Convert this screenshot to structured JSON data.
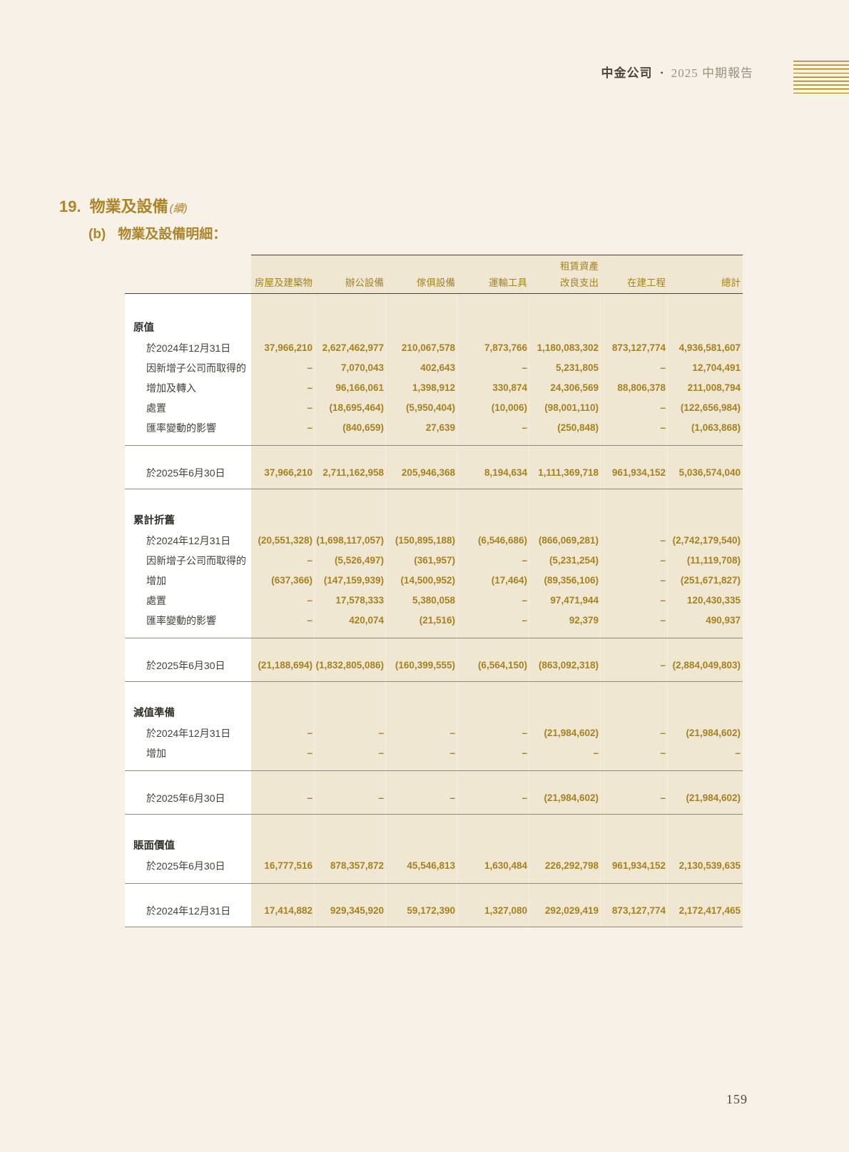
{
  "page_header": {
    "company": "中金公司",
    "separator": "•",
    "report_title": "2025 中期報告"
  },
  "section": {
    "number": "19.",
    "title": "物業及設備",
    "title_suffix": "(續)",
    "sub_label": "(b)",
    "sub_title": "物業及設備明細："
  },
  "table": {
    "group_header": {
      "label": "租賃資產",
      "over_column": 4
    },
    "columns": [
      "房屋及建築物",
      "辦公設備",
      "傢俱設備",
      "運輸工具",
      "改良支出",
      "在建工程",
      "總計"
    ],
    "sections": [
      {
        "title": "原值",
        "rows": [
          {
            "label": "於2024年12月31日",
            "values": [
              "37,966,210",
              "2,627,462,977",
              "210,067,578",
              "7,873,766",
              "1,180,083,302",
              "873,127,774",
              "4,936,581,607"
            ]
          },
          {
            "label": "因新增子公司而取得的",
            "values": [
              "–",
              "7,070,043",
              "402,643",
              "–",
              "5,231,805",
              "–",
              "12,704,491"
            ]
          },
          {
            "label": "增加及轉入",
            "values": [
              "–",
              "96,166,061",
              "1,398,912",
              "330,874",
              "24,306,569",
              "88,806,378",
              "211,008,794"
            ]
          },
          {
            "label": "處置",
            "values": [
              "–",
              "(18,695,464)",
              "(5,950,404)",
              "(10,006)",
              "(98,001,110)",
              "–",
              "(122,656,984)"
            ]
          },
          {
            "label": "匯率變動的影響",
            "values": [
              "–",
              "(840,659)",
              "27,639",
              "–",
              "(250,848)",
              "–",
              "(1,063,868)"
            ]
          }
        ],
        "total": {
          "label": "於2025年6月30日",
          "values": [
            "37,966,210",
            "2,711,162,958",
            "205,946,368",
            "8,194,634",
            "1,111,369,718",
            "961,934,152",
            "5,036,574,040"
          ]
        }
      },
      {
        "title": "累計折舊",
        "rows": [
          {
            "label": "於2024年12月31日",
            "values": [
              "(20,551,328)",
              "(1,698,117,057)",
              "(150,895,188)",
              "(6,546,686)",
              "(866,069,281)",
              "–",
              "(2,742,179,540)"
            ]
          },
          {
            "label": "因新增子公司而取得的",
            "values": [
              "–",
              "(5,526,497)",
              "(361,957)",
              "–",
              "(5,231,254)",
              "–",
              "(11,119,708)"
            ]
          },
          {
            "label": "增加",
            "values": [
              "(637,366)",
              "(147,159,939)",
              "(14,500,952)",
              "(17,464)",
              "(89,356,106)",
              "–",
              "(251,671,827)"
            ]
          },
          {
            "label": "處置",
            "values": [
              "–",
              "17,578,333",
              "5,380,058",
              "–",
              "97,471,944",
              "–",
              "120,430,335"
            ]
          },
          {
            "label": "匯率變動的影響",
            "values": [
              "–",
              "420,074",
              "(21,516)",
              "–",
              "92,379",
              "–",
              "490,937"
            ]
          }
        ],
        "total": {
          "label": "於2025年6月30日",
          "values": [
            "(21,188,694)",
            "(1,832,805,086)",
            "(160,399,555)",
            "(6,564,150)",
            "(863,092,318)",
            "–",
            "(2,884,049,803)"
          ]
        }
      },
      {
        "title": "減值準備",
        "rows": [
          {
            "label": "於2024年12月31日",
            "values": [
              "–",
              "–",
              "–",
              "–",
              "(21,984,602)",
              "–",
              "(21,984,602)"
            ]
          },
          {
            "label": "增加",
            "values": [
              "–",
              "–",
              "–",
              "–",
              "–",
              "–",
              "–"
            ]
          }
        ],
        "total": {
          "label": "於2025年6月30日",
          "values": [
            "–",
            "–",
            "–",
            "–",
            "(21,984,602)",
            "–",
            "(21,984,602)"
          ]
        }
      },
      {
        "title": "賬面價值",
        "rows": [
          {
            "label": "於2025年6月30日",
            "values": [
              "16,777,516",
              "878,357,872",
              "45,546,813",
              "1,630,484",
              "226,292,798",
              "961,934,152",
              "2,130,539,635"
            ]
          }
        ],
        "total": {
          "label": "於2024年12月31日",
          "values": [
            "17,414,882",
            "929,345,920",
            "59,172,390",
            "1,327,080",
            "292,029,419",
            "873,127,774",
            "2,172,417,465"
          ]
        }
      }
    ]
  },
  "footer": {
    "page_number": "159"
  },
  "colors": {
    "accent_gold": "#a5821f",
    "heading_gold": "#ac852b",
    "table_bg": "#f0e7d3",
    "page_bg": "#f7f1e7"
  }
}
